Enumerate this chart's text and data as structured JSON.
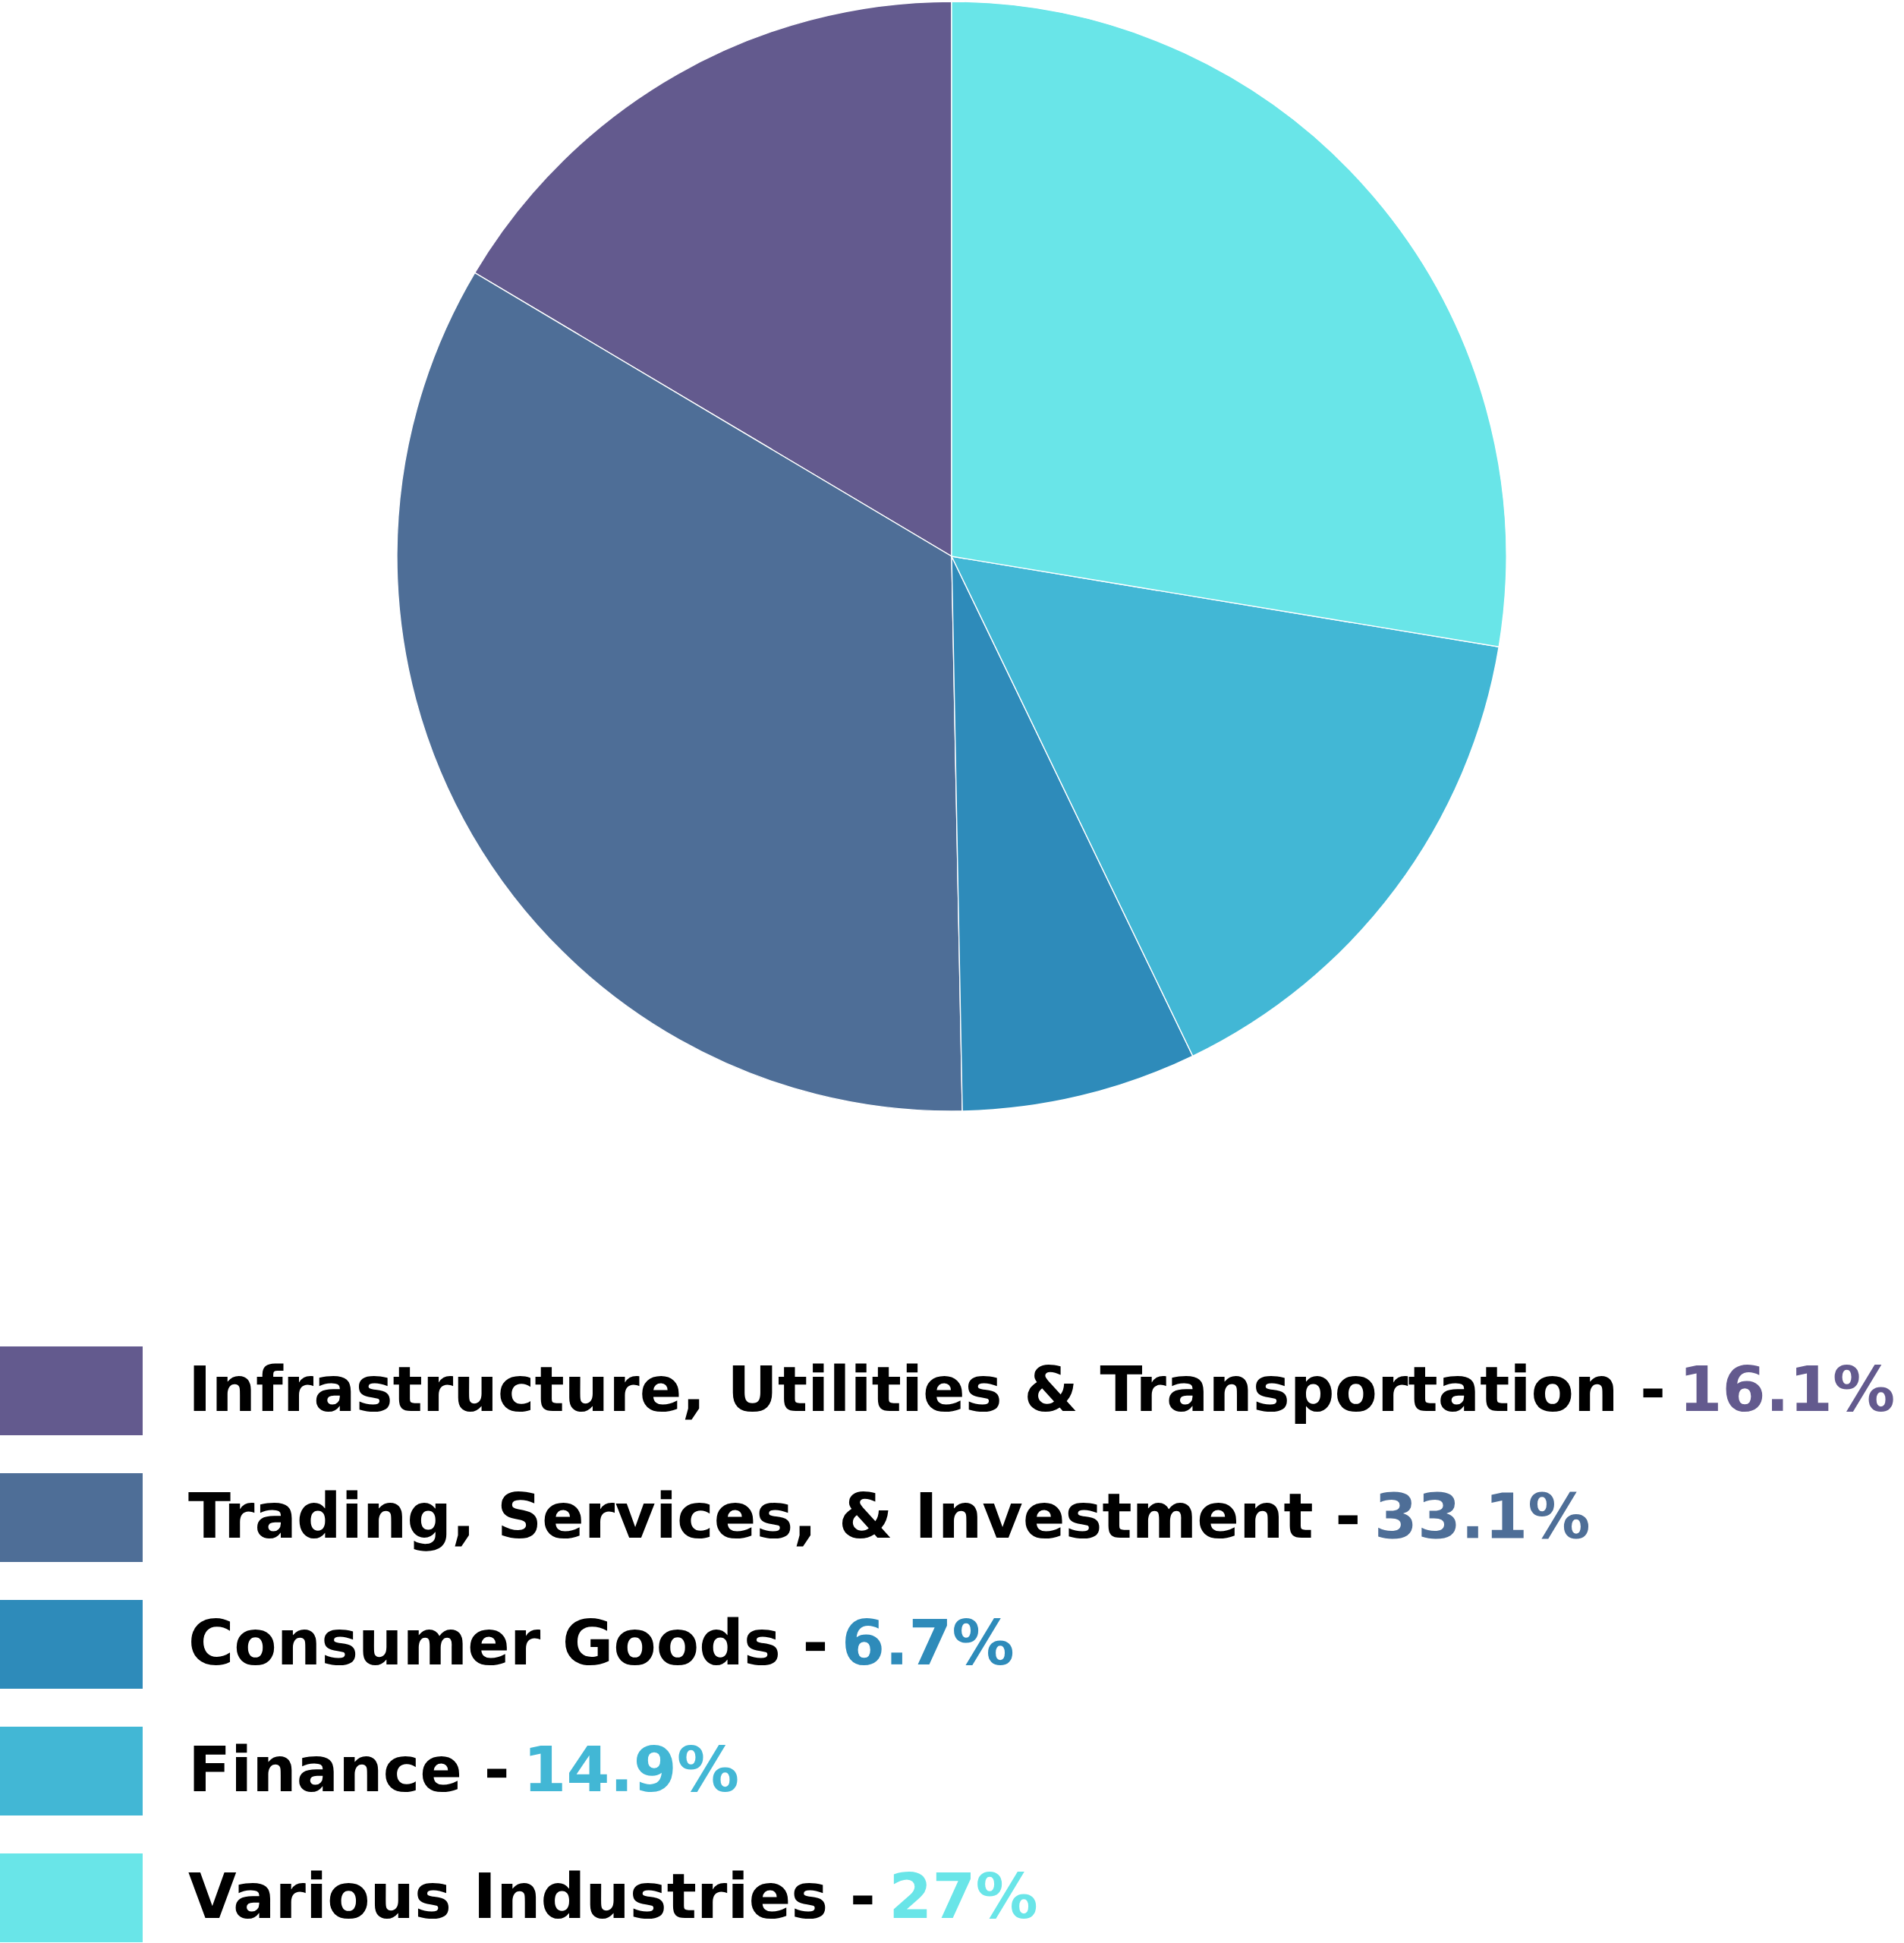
{
  "chart_data": {
    "type": "pie",
    "categories": [
      "Infrastructure, Utilities & Transportation -",
      "Trading, Services, & Investment -",
      "Consumer Goods -",
      "Finance -",
      "Various Industries -"
    ],
    "values": [
      16.1,
      33.1,
      6.7,
      14.9,
      27
    ],
    "colors": [
      "#635a8e",
      "#4e6e97",
      "#2e8bba",
      "#42b7d5",
      "#69e5e8"
    ],
    "value_labels": [
      "16.1%",
      "33.1%",
      "6.7%",
      "14.9%",
      "27%"
    ],
    "legend": "bottom"
  }
}
